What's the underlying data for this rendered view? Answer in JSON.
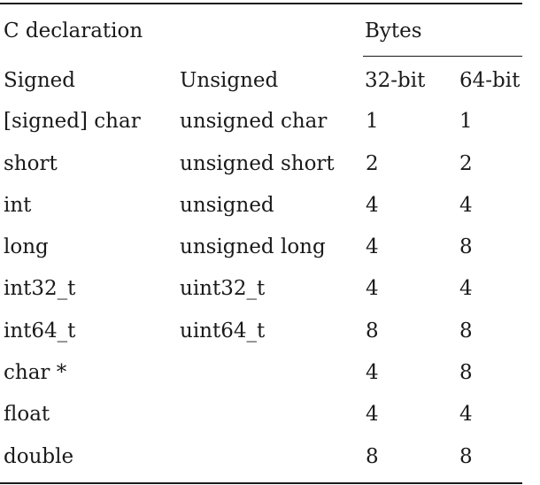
{
  "table": {
    "header_group": {
      "declaration": "C declaration",
      "bytes": "Bytes"
    },
    "columns": [
      "Signed",
      "Unsigned",
      "32-bit",
      "64-bit"
    ],
    "rows": [
      [
        "[signed] char",
        "unsigned char",
        "1",
        "1"
      ],
      [
        "short",
        "unsigned short",
        "2",
        "2"
      ],
      [
        "int",
        "unsigned",
        "4",
        "4"
      ],
      [
        "long",
        "unsigned long",
        "4",
        "8"
      ],
      [
        "int32_t",
        "uint32_t",
        "4",
        "4"
      ],
      [
        "int64_t",
        "uint64_t",
        "8",
        "8"
      ],
      [
        "char *",
        "",
        "4",
        "8"
      ],
      [
        "float",
        "",
        "4",
        "4"
      ],
      [
        "double",
        "",
        "8",
        "8"
      ]
    ]
  },
  "chart_data": {
    "type": "table",
    "header_group": [
      "C declaration",
      "Bytes"
    ],
    "columns": [
      "Signed",
      "Unsigned",
      "32-bit",
      "64-bit"
    ],
    "rows": [
      [
        "[signed] char",
        "unsigned char",
        1,
        1
      ],
      [
        "short",
        "unsigned short",
        2,
        2
      ],
      [
        "int",
        "unsigned",
        4,
        4
      ],
      [
        "long",
        "unsigned long",
        4,
        8
      ],
      [
        "int32_t",
        "uint32_t",
        4,
        4
      ],
      [
        "int64_t",
        "uint64_t",
        8,
        8
      ],
      [
        "char *",
        "",
        4,
        8
      ],
      [
        "float",
        "",
        4,
        4
      ],
      [
        "double",
        "",
        8,
        8
      ]
    ]
  }
}
